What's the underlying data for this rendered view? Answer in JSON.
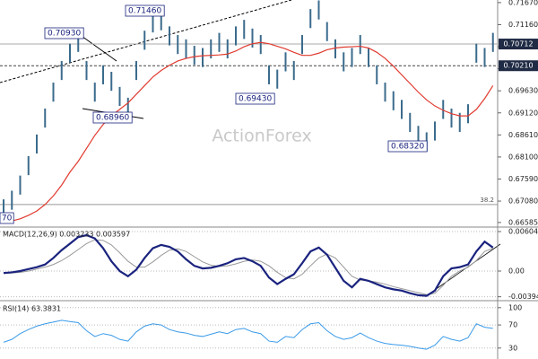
{
  "chart_data": [
    {
      "type": "ohlc",
      "watermark": "ActionForex",
      "color": "#3b6b8c",
      "ylim": [
        0.665,
        0.7173
      ],
      "yticks": [
        {
          "value": 0.7167,
          "label": "0.71670"
        },
        {
          "value": 0.7116,
          "label": "0.71160"
        },
        {
          "value": 0.7065,
          "label": "0.70650"
        },
        {
          "value": 0.7014,
          "label": "0.70140"
        },
        {
          "value": 0.6963,
          "label": "0.69630"
        },
        {
          "value": 0.6912,
          "label": "0.69120"
        },
        {
          "value": 0.6861,
          "label": "0.68610"
        },
        {
          "value": 0.681,
          "label": "0.68100"
        },
        {
          "value": 0.6759,
          "label": "0.67590"
        },
        {
          "value": 0.6708,
          "label": "0.67080"
        },
        0.66585
      ],
      "high": [
        0.6712,
        0.6732,
        0.6767,
        0.6812,
        0.6862,
        0.6922,
        0.6982,
        0.7032,
        0.7072,
        0.7097,
        0.7032,
        0.6982,
        0.7022,
        0.7007,
        0.6972,
        0.6947,
        0.7032,
        0.7102,
        0.7142,
        0.7147,
        0.7112,
        0.7092,
        0.7082,
        0.7067,
        0.7062,
        0.7082,
        0.7097,
        0.7082,
        0.7112,
        0.7127,
        0.7107,
        0.7092,
        0.7022,
        0.7012,
        0.7052,
        0.7032,
        0.7092,
        0.7152,
        0.7172,
        0.7122,
        0.7082,
        0.7052,
        0.7062,
        0.7092,
        0.7062,
        0.7022,
        0.6982,
        0.6962,
        0.6942,
        0.6912,
        0.6882,
        0.6867,
        0.6892,
        0.6942,
        0.6922,
        0.6912,
        0.6932,
        0.7072,
        0.7062,
        0.7097
      ],
      "low": [
        0.6668,
        0.6688,
        0.6723,
        0.6768,
        0.6818,
        0.6878,
        0.6938,
        0.6988,
        0.7028,
        0.7053,
        0.6988,
        0.6938,
        0.6978,
        0.6963,
        0.6928,
        0.6903,
        0.6988,
        0.7058,
        0.7098,
        0.7103,
        0.7068,
        0.7048,
        0.7038,
        0.7023,
        0.7018,
        0.7038,
        0.7053,
        0.7038,
        0.7068,
        0.7083,
        0.7063,
        0.7048,
        0.6978,
        0.6968,
        0.7008,
        0.6988,
        0.7048,
        0.7108,
        0.7128,
        0.7078,
        0.7038,
        0.7008,
        0.7018,
        0.7048,
        0.7018,
        0.6978,
        0.6938,
        0.6918,
        0.6898,
        0.6868,
        0.6838,
        0.6823,
        0.6848,
        0.6898,
        0.6878,
        0.6868,
        0.6888,
        0.7028,
        0.7018,
        0.7053
      ],
      "ma": {
        "color": "#e03a2f",
        "values": [
          0.666,
          0.6662,
          0.6667,
          0.6675,
          0.6685,
          0.67,
          0.672,
          0.6745,
          0.6775,
          0.68,
          0.683,
          0.686,
          0.6885,
          0.6905,
          0.692,
          0.6935,
          0.6955,
          0.6975,
          0.6995,
          0.701,
          0.7022,
          0.7032,
          0.7038,
          0.7042,
          0.7044,
          0.7045,
          0.7046,
          0.7048,
          0.7055,
          0.7065,
          0.7072,
          0.7075,
          0.7072,
          0.7066,
          0.706,
          0.7052,
          0.7045,
          0.7045,
          0.705,
          0.7058,
          0.7062,
          0.7064,
          0.7065,
          0.7066,
          0.7062,
          0.7052,
          0.7038,
          0.702,
          0.7,
          0.698,
          0.696,
          0.6942,
          0.6928,
          0.6918,
          0.691,
          0.6905,
          0.6905,
          0.692,
          0.6945,
          0.6975
        ]
      },
      "levels": [
        {
          "value": 0.70712,
          "style": "solid"
        },
        {
          "value": 0.7021,
          "label": "0.70210",
          "style": "dashed"
        }
      ],
      "fib": {
        "name": "38.2",
        "value": 0.67
      },
      "annotations": [
        {
          "value": 0.7146,
          "label": "0.71460"
        },
        {
          "value": 0.7093,
          "label": "0.70930"
        },
        {
          "value": 0.6896,
          "label": "0.68960"
        },
        {
          "value": 0.6943,
          "label": "0.69430"
        },
        {
          "value": 0.6832,
          "label": "0.68320"
        },
        {
          "label": "70"
        }
      ]
    },
    {
      "type": "line",
      "title": "MACD(12,26,9) 0.003233 0.003597",
      "ylim": [
        -0.0044,
        0.0066
      ],
      "yticks": [
        0.006048,
        {
          "value": 0,
          "label": "0.00"
        },
        -0.00394
      ],
      "series": [
        {
          "color": "#1a237e",
          "width": 2.2,
          "values": [
            -0.0003,
            -0.0002,
            0,
            0.0003,
            0.0006,
            0.001,
            0.002,
            0.0032,
            0.0042,
            0.0052,
            0.0055,
            0.005,
            0.0035,
            0.0015,
            0,
            -0.0008,
            0.0002,
            0.002,
            0.0035,
            0.004,
            0.0037,
            0.003,
            0.0018,
            0.0008,
            0.0004,
            0.0005,
            0.0008,
            0.0012,
            0.0018,
            0.002,
            0.0015,
            0.0008,
            -0.001,
            -0.002,
            -0.0012,
            -0.0005,
            0.0012,
            0.003,
            0.0036,
            0.0025,
            0.0005,
            -0.0015,
            -0.0025,
            -0.0012,
            -0.0015,
            -0.002,
            -0.0025,
            -0.0028,
            -0.003,
            -0.0034,
            -0.0037,
            -0.0038,
            -0.003,
            -0.0008,
            0.0004,
            0.0006,
            0.001,
            0.003,
            0.0045,
            0.0036
          ]
        },
        {
          "color": "#999999",
          "width": 1,
          "values": [
            -0.0004,
            -0.0003,
            -0.0002,
            0,
            0.0003,
            0.0006,
            0.001,
            0.0016,
            0.0024,
            0.0033,
            0.0042,
            0.0048,
            0.0047,
            0.004,
            0.0028,
            0.0015,
            0.0006,
            0.0006,
            0.0014,
            0.0024,
            0.0032,
            0.0034,
            0.003,
            0.0022,
            0.0014,
            0.0009,
            0.0007,
            0.0008,
            0.0011,
            0.0015,
            0.0017,
            0.0015,
            0.0008,
            -0.0002,
            -0.001,
            -0.0012,
            -0.0005,
            0.0008,
            0.002,
            0.0026,
            0.002,
            0.0006,
            -0.0008,
            -0.0014,
            -0.0015,
            -0.0017,
            -0.002,
            -0.0024,
            -0.0027,
            -0.003,
            -0.0033,
            -0.0036,
            -0.0034,
            -0.0022,
            -0.0008,
            0,
            0.0006,
            0.0016,
            0.003,
            0.0035
          ]
        }
      ]
    },
    {
      "type": "line",
      "title": "RSI(14) 63.3831",
      "ylim": [
        11,
        109
      ],
      "yticks": [
        100,
        70,
        30
      ],
      "series": [
        {
          "color": "#3a9ae8",
          "width": 1,
          "values": [
            40,
            45,
            55,
            62,
            68,
            72,
            75,
            78,
            76,
            74,
            60,
            50,
            55,
            52,
            45,
            42,
            58,
            68,
            72,
            70,
            62,
            58,
            56,
            52,
            50,
            54,
            58,
            55,
            62,
            64,
            58,
            55,
            42,
            40,
            50,
            48,
            62,
            72,
            74,
            60,
            50,
            45,
            48,
            56,
            48,
            42,
            38,
            36,
            35,
            33,
            30,
            28,
            35,
            50,
            45,
            42,
            48,
            72,
            66,
            64
          ]
        }
      ]
    }
  ]
}
